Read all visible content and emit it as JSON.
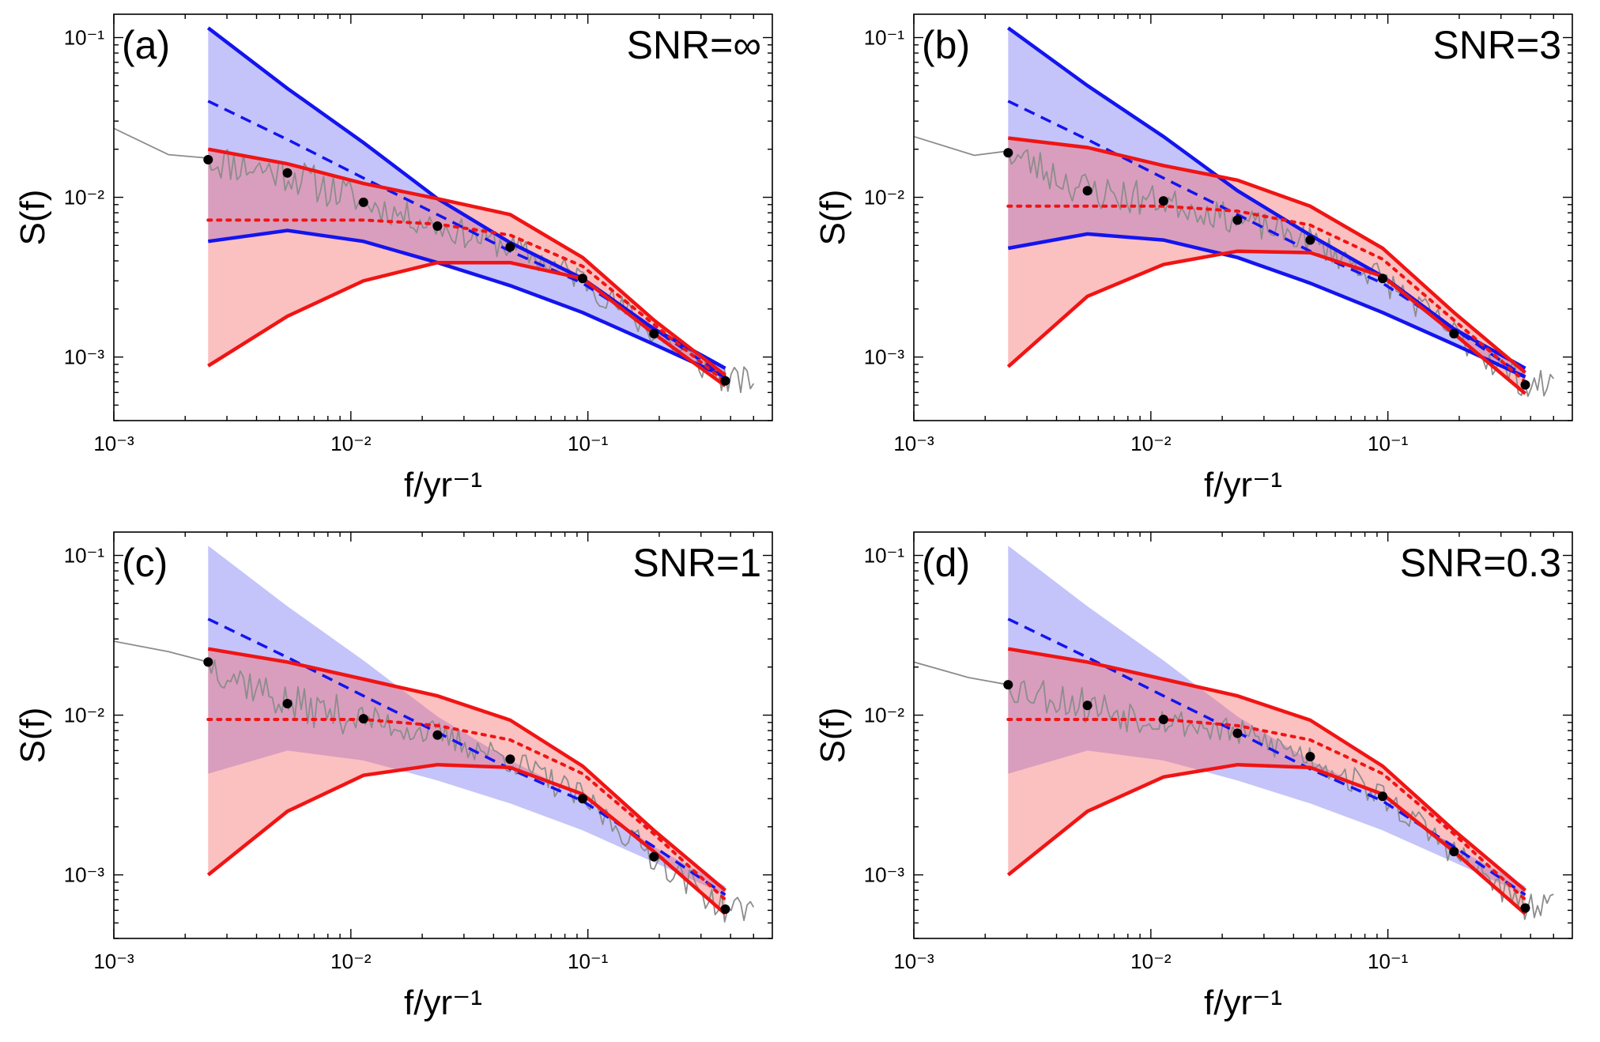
{
  "figure": {
    "colors": {
      "blue": "#1414ee",
      "blue_fill": "#6b6bf2",
      "red": "#f01414",
      "red_fill": "#f56a6a",
      "data_line": "#8c8c8c",
      "points": "#000000"
    }
  },
  "chart_data": [
    {
      "type": "line",
      "panel": "(a)",
      "annotation": "SNR=∞",
      "xlabel": "f/yr⁻¹",
      "ylabel": "S(f)",
      "xscale": "log",
      "yscale": "log",
      "xlim": [
        0.001,
        0.6
      ],
      "ylim": [
        0.0004,
        0.14
      ],
      "x_tick_labels": [
        "10⁻³",
        "10⁻²",
        "10⁻¹"
      ],
      "y_tick_labels": [
        "10⁻³",
        "10⁻²",
        "10⁻¹"
      ],
      "blue_band_style": "lines",
      "x_bins": [
        0.0025,
        0.0054,
        0.0113,
        0.0232,
        0.047,
        0.095,
        0.19,
        0.38
      ],
      "blue_upper": [
        0.115,
        0.048,
        0.022,
        0.0098,
        0.0052,
        0.0031,
        0.0015,
        0.00085
      ],
      "blue_median": [
        0.04,
        0.023,
        0.0132,
        0.0078,
        0.0046,
        0.0029,
        0.0015,
        0.00075
      ],
      "blue_lower": [
        0.0053,
        0.0062,
        0.0053,
        0.0039,
        0.0028,
        0.0019,
        0.0012,
        0.00075
      ],
      "red_upper": [
        0.02,
        0.0162,
        0.0122,
        0.0098,
        0.0078,
        0.0042,
        0.0017,
        0.00077
      ],
      "red_median": [
        0.0072,
        0.0072,
        0.0072,
        0.0068,
        0.0058,
        0.0037,
        0.0016,
        0.0007
      ],
      "red_lower": [
        0.00088,
        0.0018,
        0.003,
        0.0039,
        0.0039,
        0.0031,
        0.0014,
        0.00066
      ],
      "points": [
        0.0172,
        0.0142,
        0.0093,
        0.0066,
        0.0049,
        0.0031,
        0.0014,
        0.00071
      ],
      "start_spectrum": [
        [
          0.001,
          0.027
        ],
        [
          0.0017,
          0.0185
        ],
        [
          0.0025,
          0.0176
        ]
      ],
      "noise_seed": 11
    },
    {
      "type": "line",
      "panel": "(b)",
      "annotation": "SNR=3",
      "xlabel": "f/yr⁻¹",
      "ylabel": "S(f)",
      "xscale": "log",
      "yscale": "log",
      "xlim": [
        0.001,
        0.6
      ],
      "ylim": [
        0.0004,
        0.14
      ],
      "x_tick_labels": [
        "10⁻³",
        "10⁻²",
        "10⁻¹"
      ],
      "y_tick_labels": [
        "10⁻³",
        "10⁻²",
        "10⁻¹"
      ],
      "blue_band_style": "lines",
      "x_bins": [
        0.0025,
        0.0054,
        0.0113,
        0.0232,
        0.047,
        0.095,
        0.19,
        0.38
      ],
      "blue_upper": [
        0.115,
        0.05,
        0.024,
        0.011,
        0.0058,
        0.0032,
        0.0015,
        0.00085
      ],
      "blue_median": [
        0.04,
        0.023,
        0.0132,
        0.0078,
        0.0046,
        0.0029,
        0.0015,
        0.00075
      ],
      "blue_lower": [
        0.0048,
        0.0059,
        0.0054,
        0.0042,
        0.0029,
        0.0019,
        0.0012,
        0.00075
      ],
      "red_upper": [
        0.0235,
        0.0205,
        0.0158,
        0.0128,
        0.0088,
        0.0048,
        0.0019,
        0.0008
      ],
      "red_median": [
        0.0088,
        0.0088,
        0.0088,
        0.0082,
        0.0067,
        0.0041,
        0.0017,
        0.0007
      ],
      "red_lower": [
        0.00087,
        0.0024,
        0.0038,
        0.0046,
        0.0045,
        0.0032,
        0.0014,
        0.00059
      ],
      "points": [
        0.019,
        0.011,
        0.0095,
        0.0072,
        0.0054,
        0.0031,
        0.0014,
        0.00067
      ],
      "start_spectrum": [
        [
          0.001,
          0.024
        ],
        [
          0.0018,
          0.0183
        ],
        [
          0.0025,
          0.0195
        ]
      ],
      "noise_seed": 23
    },
    {
      "type": "line",
      "panel": "(c)",
      "annotation": "SNR=1",
      "xlabel": "f/yr⁻¹",
      "ylabel": "S(f)",
      "xscale": "log",
      "yscale": "log",
      "xlim": [
        0.001,
        0.6
      ],
      "ylim": [
        0.0004,
        0.14
      ],
      "x_tick_labels": [
        "10⁻³",
        "10⁻²",
        "10⁻¹"
      ],
      "y_tick_labels": [
        "10⁻³",
        "10⁻²",
        "10⁻¹"
      ],
      "blue_band_style": "shade",
      "x_bins": [
        0.0025,
        0.0054,
        0.0113,
        0.0232,
        0.047,
        0.095,
        0.19,
        0.38
      ],
      "blue_upper": [
        0.115,
        0.048,
        0.022,
        0.0098,
        0.0052,
        0.0031,
        0.0015,
        0.00085
      ],
      "blue_median": [
        0.04,
        0.023,
        0.0132,
        0.0078,
        0.0046,
        0.0029,
        0.0015,
        0.00075
      ],
      "blue_lower": [
        0.0043,
        0.006,
        0.0052,
        0.0039,
        0.0028,
        0.0019,
        0.0012,
        0.00075
      ],
      "red_upper": [
        0.026,
        0.0215,
        0.0168,
        0.0132,
        0.0093,
        0.0048,
        0.0019,
        0.0008
      ],
      "red_median": [
        0.0094,
        0.0094,
        0.0094,
        0.0086,
        0.007,
        0.0043,
        0.0018,
        0.0007
      ],
      "red_lower": [
        0.001,
        0.0025,
        0.0042,
        0.0049,
        0.0047,
        0.0032,
        0.0014,
        0.00057
      ],
      "points": [
        0.0215,
        0.0118,
        0.0095,
        0.0075,
        0.0053,
        0.003,
        0.0013,
        0.00061
      ],
      "start_spectrum": [
        [
          0.001,
          0.029
        ],
        [
          0.0017,
          0.025
        ],
        [
          0.0025,
          0.0215
        ]
      ],
      "noise_seed": 37
    },
    {
      "type": "line",
      "panel": "(d)",
      "annotation": "SNR=0.3",
      "xlabel": "f/yr⁻¹",
      "ylabel": "S(f)",
      "xscale": "log",
      "yscale": "log",
      "xlim": [
        0.001,
        0.6
      ],
      "ylim": [
        0.0004,
        0.14
      ],
      "x_tick_labels": [
        "10⁻³",
        "10⁻²",
        "10⁻¹"
      ],
      "y_tick_labels": [
        "10⁻³",
        "10⁻²",
        "10⁻¹"
      ],
      "blue_band_style": "shade",
      "x_bins": [
        0.0025,
        0.0054,
        0.0113,
        0.0232,
        0.047,
        0.095,
        0.19,
        0.38
      ],
      "blue_upper": [
        0.115,
        0.048,
        0.022,
        0.0098,
        0.0052,
        0.0031,
        0.0015,
        0.00085
      ],
      "blue_median": [
        0.04,
        0.023,
        0.0132,
        0.0078,
        0.0046,
        0.0029,
        0.0015,
        0.00075
      ],
      "blue_lower": [
        0.0043,
        0.006,
        0.0052,
        0.0039,
        0.0028,
        0.0019,
        0.0012,
        0.00075
      ],
      "red_upper": [
        0.026,
        0.0215,
        0.0168,
        0.0132,
        0.0093,
        0.0048,
        0.0019,
        0.0008
      ],
      "red_median": [
        0.0094,
        0.0094,
        0.0094,
        0.0086,
        0.007,
        0.0043,
        0.0018,
        0.0007
      ],
      "red_lower": [
        0.001,
        0.0025,
        0.0041,
        0.0049,
        0.0047,
        0.0032,
        0.0014,
        0.00057
      ],
      "points": [
        0.0155,
        0.0115,
        0.0094,
        0.0077,
        0.0055,
        0.0031,
        0.0014,
        0.00062
      ],
      "start_spectrum": [
        [
          0.001,
          0.0215
        ],
        [
          0.0017,
          0.0172
        ],
        [
          0.0025,
          0.0155
        ]
      ],
      "noise_seed": 53
    }
  ]
}
